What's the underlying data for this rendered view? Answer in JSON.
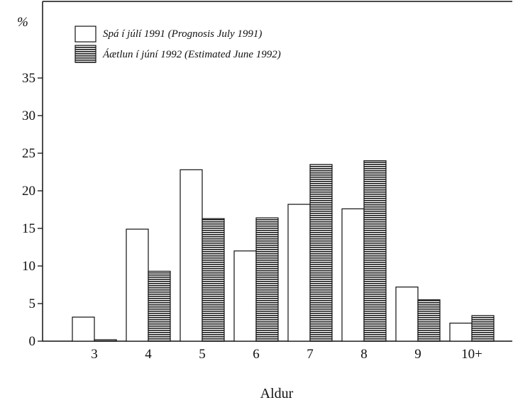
{
  "chart_data": {
    "type": "bar",
    "title": "",
    "xlabel": "Aldur",
    "ylabel": "%",
    "ylim": [
      0,
      40
    ],
    "yticks": [
      0,
      5,
      10,
      15,
      20,
      25,
      30,
      35
    ],
    "categories": [
      "3",
      "4",
      "5",
      "6",
      "7",
      "8",
      "9",
      "10+"
    ],
    "series": [
      {
        "name": "Spá í júlí 1991 (Prognosis July 1991)",
        "fill": "white",
        "values": [
          3.2,
          14.9,
          22.8,
          12.0,
          18.2,
          17.6,
          7.2,
          2.4
        ]
      },
      {
        "name": "Áætlun í júní 1992 (Estimated June 1992)",
        "fill": "hatched",
        "values": [
          0.2,
          9.3,
          16.3,
          16.4,
          23.5,
          24.0,
          5.5,
          3.4
        ]
      }
    ],
    "grid": false,
    "legend": "top-left"
  }
}
